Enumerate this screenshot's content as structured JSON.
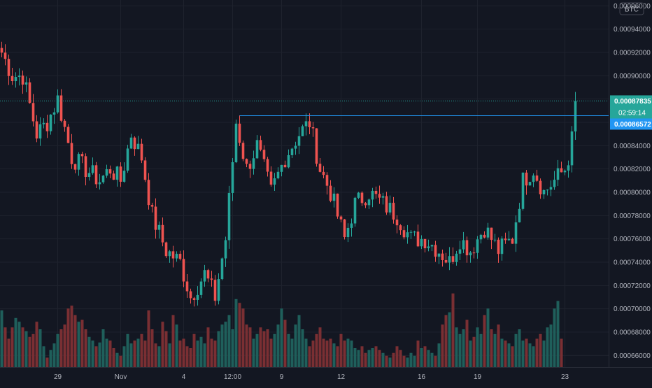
{
  "symbol": {
    "currency_badge": "BTC"
  },
  "colors": {
    "background": "#131722",
    "grid": "#1e222d",
    "up": "#26a69a",
    "down": "#ef5350",
    "volume_up": "#1f5f5b",
    "volume_down": "#7a2f33",
    "axis_text": "#b2b5be",
    "current_price_label": "#26a69a",
    "alert_line": "#2196f3",
    "alert_label": "#2196f3"
  },
  "chart_data": {
    "type": "candlestick",
    "y_axis": {
      "side": "right",
      "ylim": [
        0.00065,
        0.000965
      ],
      "tick_labels": [
        "0.00066000",
        "0.00068000",
        "0.00070000",
        "0.00072000",
        "0.00074000",
        "0.00076000",
        "0.00078000",
        "0.00080000",
        "0.00082000",
        "0.00084000",
        "0.00086000",
        "0.00088000",
        "0.00090000",
        "0.00092000",
        "0.00094000",
        "0.00096000"
      ]
    },
    "x_axis": {
      "tick_labels": [
        "29",
        "Nov",
        "4",
        "12:00",
        "9",
        "12",
        "16",
        "19",
        "23"
      ],
      "tick_bar_index": [
        16,
        34,
        52,
        66,
        80,
        97,
        120,
        136,
        161
      ]
    },
    "current_price": {
      "value": 0.00087835,
      "label": "0.00087835",
      "countdown": "02:59:14"
    },
    "horizontal_line": {
      "value": 0.00086572,
      "label": "0.00086572",
      "start_bar": 68
    },
    "anchors": [
      [
        0,
        0.00092
      ],
      [
        3,
        0.0009
      ],
      [
        6,
        0.0009
      ],
      [
        10,
        0.00085
      ],
      [
        13,
        0.00086
      ],
      [
        16,
        0.00088
      ],
      [
        20,
        0.00083
      ],
      [
        24,
        0.00082
      ],
      [
        28,
        0.00081
      ],
      [
        31,
        0.00082
      ],
      [
        34,
        0.00081
      ],
      [
        37,
        0.00085
      ],
      [
        40,
        0.00083
      ],
      [
        43,
        0.00078
      ],
      [
        47,
        0.00075
      ],
      [
        51,
        0.00074
      ],
      [
        54,
        0.00071
      ],
      [
        58,
        0.00073
      ],
      [
        61,
        0.00071
      ],
      [
        64,
        0.00076
      ],
      [
        67,
        0.00086
      ],
      [
        70,
        0.00082
      ],
      [
        73,
        0.00084
      ],
      [
        77,
        0.0008
      ],
      [
        81,
        0.00083
      ],
      [
        85,
        0.00085
      ],
      [
        88,
        0.00086
      ],
      [
        91,
        0.00082
      ],
      [
        94,
        0.0008
      ],
      [
        98,
        0.00076
      ],
      [
        101,
        0.00079
      ],
      [
        105,
        0.0008
      ],
      [
        109,
        0.00079
      ],
      [
        113,
        0.00078
      ],
      [
        117,
        0.00076
      ],
      [
        121,
        0.00076
      ],
      [
        125,
        0.00075
      ],
      [
        128,
        0.00074
      ],
      [
        131,
        0.00076
      ],
      [
        134,
        0.00075
      ],
      [
        138,
        0.00077
      ],
      [
        142,
        0.00075
      ],
      [
        146,
        0.00076
      ],
      [
        149,
        0.00081
      ],
      [
        152,
        0.00082
      ],
      [
        155,
        0.0008
      ],
      [
        158,
        0.00081
      ],
      [
        161,
        0.00082
      ],
      [
        162,
        0.00083
      ],
      [
        163,
        0.000845
      ],
      [
        164,
        0.00087835
      ]
    ],
    "volume_scale_max": 100,
    "volumes": [
      60,
      42,
      30,
      42,
      52,
      48,
      42,
      38,
      32,
      35,
      48,
      40,
      22,
      10,
      18,
      25,
      35,
      40,
      45,
      62,
      65,
      55,
      48,
      50,
      40,
      32,
      28,
      22,
      26,
      40,
      30,
      28,
      20,
      15,
      12,
      22,
      35,
      25,
      28,
      30,
      35,
      28,
      60,
      40,
      25,
      22,
      48,
      38,
      25,
      55,
      45,
      28,
      30,
      22,
      20,
      35,
      28,
      32,
      25,
      42,
      30,
      28,
      38,
      45,
      48,
      55,
      40,
      72,
      68,
      62,
      45,
      42,
      30,
      35,
      42,
      38,
      40,
      30,
      35,
      45,
      62,
      50,
      35,
      30,
      45,
      55,
      40,
      30,
      22,
      28,
      35,
      42,
      30,
      28,
      30,
      25,
      22,
      35,
      28,
      30,
      28,
      20,
      18,
      22,
      15,
      18,
      20,
      22,
      18,
      15,
      12,
      10,
      15,
      22,
      18,
      12,
      10,
      15,
      12,
      28,
      20,
      22,
      18,
      15,
      12,
      25,
      45,
      55,
      58,
      78,
      42,
      35,
      40,
      50,
      28,
      32,
      42,
      35,
      55,
      62,
      40,
      35,
      45,
      30,
      28,
      25,
      22,
      35,
      40,
      28,
      30,
      25,
      22,
      30,
      35,
      28,
      42,
      45,
      62,
      70,
      30
    ]
  }
}
